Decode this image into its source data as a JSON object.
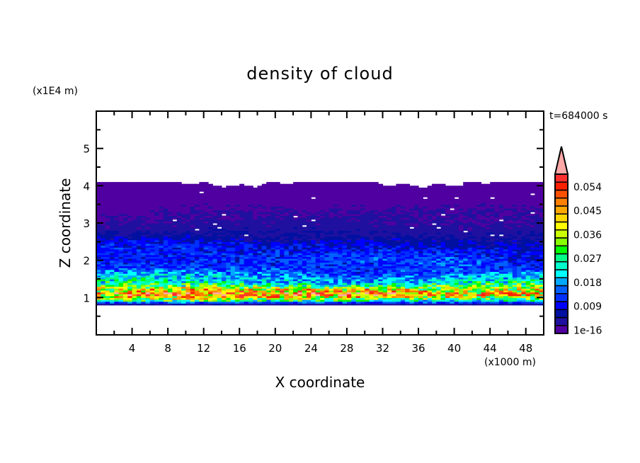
{
  "chart_data": {
    "type": "heatmap",
    "title": "density of cloud",
    "xlabel": "X coordinate",
    "ylabel": "Z coordinate",
    "x_unit": "(x1000 m)",
    "y_unit": "(x1E4 m)",
    "time_label": "t=684000 s",
    "xlim": [
      0,
      50
    ],
    "ylim": [
      0,
      6
    ],
    "x_ticks": [
      4,
      8,
      12,
      16,
      20,
      24,
      28,
      32,
      36,
      40,
      44,
      48
    ],
    "y_ticks": [
      1,
      2,
      3,
      4,
      5
    ],
    "colorbar": {
      "levels": [
        1e-16,
        0.003,
        0.006,
        0.009,
        0.012,
        0.015,
        0.018,
        0.021,
        0.024,
        0.027,
        0.03,
        0.033,
        0.036,
        0.039,
        0.042,
        0.045,
        0.048,
        0.051,
        0.054,
        0.057
      ],
      "colors": [
        "#5000a0",
        "#2010a0",
        "#0010a0",
        "#0000ff",
        "#0030ff",
        "#0060ff",
        "#00a8ff",
        "#00ffff",
        "#00ffcc",
        "#00ff88",
        "#00ff00",
        "#88ff00",
        "#ccff00",
        "#ffff00",
        "#ffd800",
        "#ffa800",
        "#ff8000",
        "#ff5000",
        "#ff2000",
        "#ff3030"
      ],
      "overflow_color": "#ffa8a8",
      "tick_labels": [
        "1e-16",
        "0.009",
        "0.018",
        "0.027",
        "0.036",
        "0.045",
        "0.054"
      ],
      "tick_values": [
        1e-16,
        0.009,
        0.018,
        0.027,
        0.036,
        0.045,
        0.054
      ]
    },
    "profile_x": [
      0,
      10,
      20,
      30,
      40,
      50
    ],
    "profile": [
      {
        "z": 0.8,
        "values": [
          0.002,
          0.002,
          0.002,
          0.002,
          0.002,
          0.002
        ]
      },
      {
        "z": 0.85,
        "values": [
          0.008,
          0.008,
          0.008,
          0.008,
          0.008,
          0.008
        ]
      },
      {
        "z": 0.9,
        "values": [
          0.022,
          0.024,
          0.022,
          0.022,
          0.02,
          0.02
        ]
      },
      {
        "z": 1.0,
        "values": [
          0.038,
          0.042,
          0.04,
          0.04,
          0.036,
          0.034
        ]
      },
      {
        "z": 1.1,
        "values": [
          0.046,
          0.052,
          0.05,
          0.05,
          0.046,
          0.044
        ]
      },
      {
        "z": 1.2,
        "values": [
          0.04,
          0.046,
          0.044,
          0.046,
          0.042,
          0.042
        ]
      },
      {
        "z": 1.3,
        "values": [
          0.032,
          0.034,
          0.03,
          0.03,
          0.032,
          0.034
        ]
      },
      {
        "z": 1.4,
        "values": [
          0.026,
          0.026,
          0.022,
          0.02,
          0.026,
          0.028
        ]
      },
      {
        "z": 1.5,
        "values": [
          0.024,
          0.024,
          0.02,
          0.018,
          0.022,
          0.024
        ]
      },
      {
        "z": 1.6,
        "values": [
          0.022,
          0.022,
          0.018,
          0.014,
          0.018,
          0.02
        ]
      },
      {
        "z": 1.7,
        "values": [
          0.018,
          0.018,
          0.016,
          0.012,
          0.016,
          0.016
        ]
      },
      {
        "z": 1.8,
        "values": [
          0.014,
          0.014,
          0.014,
          0.012,
          0.015,
          0.012
        ]
      },
      {
        "z": 2.0,
        "values": [
          0.011,
          0.011,
          0.013,
          0.014,
          0.015,
          0.01
        ]
      },
      {
        "z": 2.2,
        "values": [
          0.011,
          0.012,
          0.012,
          0.013,
          0.012,
          0.009
        ]
      },
      {
        "z": 2.4,
        "values": [
          0.012,
          0.012,
          0.01,
          0.01,
          0.009,
          0.008
        ]
      },
      {
        "z": 2.6,
        "values": [
          0.008,
          0.008,
          0.006,
          0.007,
          0.006,
          0.006
        ]
      },
      {
        "z": 2.8,
        "values": [
          0.005,
          0.005,
          0.005,
          0.005,
          0.004,
          0.005
        ]
      },
      {
        "z": 3.0,
        "values": [
          0.003,
          0.004,
          0.004,
          0.004,
          0.003,
          0.004
        ]
      },
      {
        "z": 3.3,
        "values": [
          0.002,
          0.003,
          0.003,
          0.003,
          0.003,
          0.003
        ]
      },
      {
        "z": 3.6,
        "values": [
          0.002,
          0.002,
          0.002,
          0.002,
          0.002,
          0.002
        ]
      },
      {
        "z": 4.0,
        "values": [
          0.001,
          0.001,
          0.001,
          0.001,
          0.001,
          0.001
        ]
      },
      {
        "z": 4.1,
        "values": [
          0,
          0,
          0,
          0,
          0,
          0
        ]
      }
    ]
  }
}
